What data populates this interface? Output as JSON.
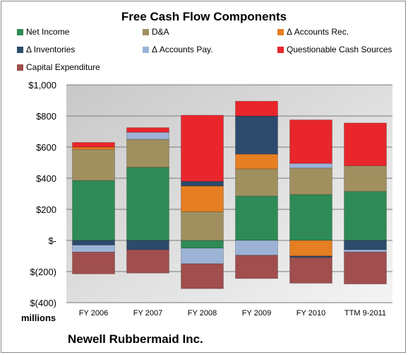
{
  "chart_data": {
    "type": "bar",
    "stacked": true,
    "title": "Free Cash Flow Components",
    "unit_label": "millions",
    "company": "Newell Rubbermaid Inc.",
    "categories": [
      "FY 2006",
      "FY 2007",
      "FY 2008",
      "FY 2009",
      "FY 2010",
      "TTM 9-2011"
    ],
    "ylim": [
      -400,
      1000
    ],
    "yticks": [
      {
        "value": 1000,
        "label": "$1,000"
      },
      {
        "value": 800,
        "label": "$800"
      },
      {
        "value": 600,
        "label": "$600"
      },
      {
        "value": 400,
        "label": "$400"
      },
      {
        "value": 200,
        "label": "$200"
      },
      {
        "value": 0,
        "label": "$-"
      },
      {
        "value": -200,
        "label": "$(200)"
      },
      {
        "value": -400,
        "label": "$(400)"
      }
    ],
    "grid": true,
    "legend_position": "top",
    "series": [
      {
        "name": "Net Income",
        "color": "#2e8b57",
        "values": [
          385,
          470,
          -50,
          285,
          295,
          315
        ]
      },
      {
        "name": "D&A",
        "color": "#a09060",
        "values": [
          200,
          180,
          185,
          175,
          170,
          165
        ]
      },
      {
        "name": "Δ Accounts Rec.",
        "color": "#e67e22",
        "values": [
          15,
          0,
          165,
          95,
          -100,
          0
        ]
      },
      {
        "name": "Δ Inventories",
        "color": "#2c4a6b",
        "values": [
          -30,
          -60,
          30,
          245,
          -10,
          -60
        ]
      },
      {
        "name": "Δ Accounts Pay.",
        "color": "#9cb3d6",
        "values": [
          -45,
          45,
          -100,
          -95,
          30,
          -15
        ]
      },
      {
        "name": "Questionable Cash Sources",
        "color": "#e8262b",
        "values": [
          30,
          30,
          425,
          95,
          280,
          275
        ]
      },
      {
        "name": "Capital Expenditure",
        "color": "#a04e4e",
        "values": [
          -140,
          -150,
          -160,
          -150,
          -165,
          -205
        ]
      }
    ]
  }
}
